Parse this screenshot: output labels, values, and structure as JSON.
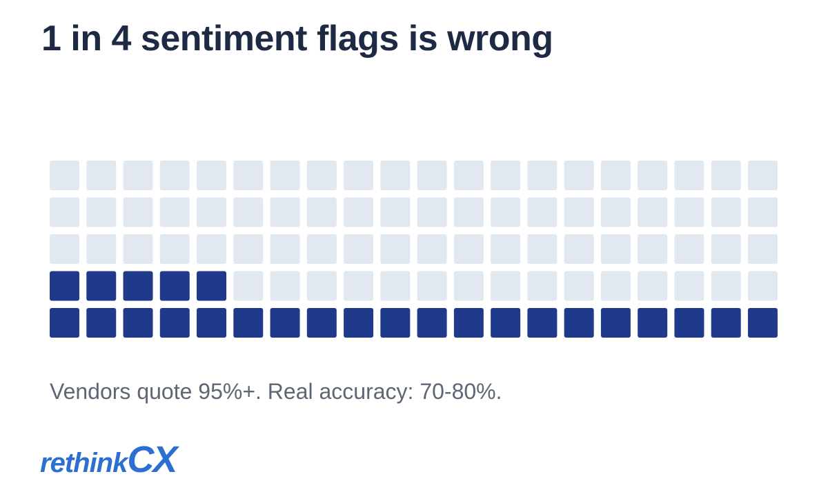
{
  "title": "1 in 4 sentiment flags is wrong",
  "caption": "Vendors quote 95%+. Real accuracy: 70-80%.",
  "logo": {
    "lead": "rethink",
    "tail": "CX"
  },
  "colors": {
    "filled": "#1f3a8a",
    "empty": "#e2e8f0",
    "title": "#1e2a44",
    "caption": "#5c6675",
    "logo": "#2c6fd1"
  },
  "chart_data": {
    "type": "waffle",
    "rows": 5,
    "columns": 20,
    "total": 100,
    "filled": 25,
    "fill_order": "bottom-up, left-to-right"
  }
}
